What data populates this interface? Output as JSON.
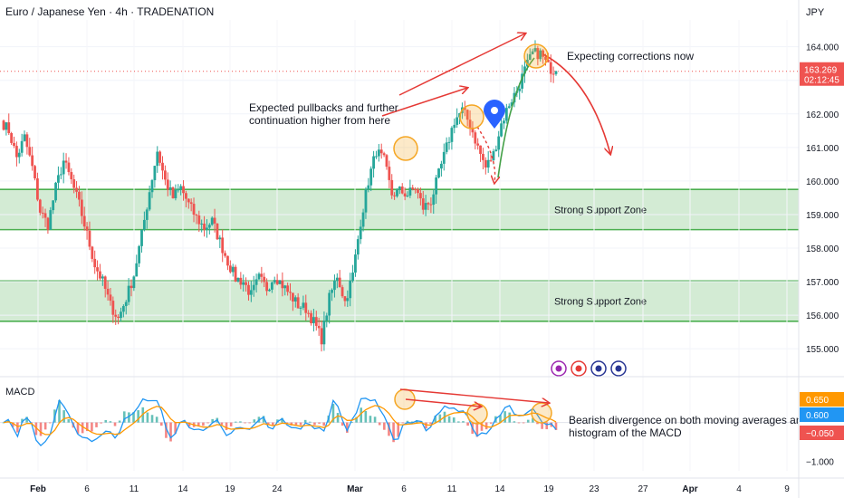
{
  "header": {
    "title": "Euro / Japanese Yen · 4h · TRADENATION",
    "currency": "JPY"
  },
  "indicator": {
    "name": "MACD"
  },
  "colors": {
    "up": "#26a69a",
    "down": "#ef5350",
    "zone_fill": "#c8e6c9",
    "zone_line": "#4caf50",
    "annotation_red": "#e53935",
    "annotation_green": "#43a047",
    "circle": "#f5a623",
    "macd_line": "#2196f3",
    "signal_line": "#ff9800",
    "marker_blue": "#2962ff"
  },
  "chart_data": [
    {
      "type": "candlestick",
      "title": "Euro / Japanese Yen · 4h · TRADENATION",
      "x_ticks": [
        "Feb",
        "6",
        "11",
        "14",
        "19",
        "24",
        "Mar",
        "6",
        "11",
        "14",
        "19",
        "23",
        "27",
        "Apr",
        "4",
        "9"
      ],
      "y_ticks": [
        155.0,
        156.0,
        157.0,
        158.0,
        159.0,
        160.0,
        161.0,
        162.0,
        163.0,
        164.0
      ],
      "ylim": [
        154.6,
        164.8
      ],
      "last_price": "163.269",
      "countdown": "02:12:45",
      "path": [
        161.8,
        161.5,
        160.7,
        161.3,
        160.4,
        159.1,
        158.7,
        159.8,
        160.6,
        160.0,
        159.3,
        158.4,
        157.5,
        157.0,
        156.3,
        155.9,
        156.5,
        157.2,
        158.4,
        159.7,
        160.9,
        160.0,
        159.5,
        159.8,
        159.3,
        158.9,
        158.6,
        158.8,
        158.2,
        157.6,
        157.1,
        157.0,
        156.6,
        157.1,
        156.8,
        157.2,
        156.9,
        156.6,
        156.3,
        156.2,
        155.8,
        155.3,
        156.5,
        157.2,
        156.4,
        157.2,
        158.8,
        160.0,
        160.9,
        160.6,
        159.6,
        159.7,
        159.6,
        159.8,
        159.2,
        159.4,
        160.2,
        161.0,
        161.8,
        162.1,
        161.7,
        161.0,
        160.4,
        160.8,
        161.7,
        162.3,
        162.7,
        163.3,
        163.8,
        163.8,
        163.4,
        163.27
      ],
      "support_zones": [
        {
          "label": "Strong Support Zone",
          "low": 158.55,
          "high": 159.75
        },
        {
          "label": "Strong Support Zone",
          "low": 155.82,
          "high": 157.02
        }
      ],
      "annotations": [
        {
          "text": "Expecting corrections now"
        },
        {
          "text": "Expected pullbacks and further continuation higher from here"
        }
      ]
    },
    {
      "type": "line",
      "title": "MACD",
      "y_ticks": [
        -1.0
      ],
      "ylim": [
        -1.25,
        0.95
      ],
      "labels": [
        {
          "text": "0.650",
          "value": 0.65,
          "color": "#ff9800"
        },
        {
          "text": "0.600",
          "value": 0.6,
          "color": "#2196f3"
        },
        {
          "text": "−0.050",
          "value": -0.05,
          "color": "#ef5350"
        }
      ],
      "annotation": "Bearish divergence on both moving averages and histogram of the MACD"
    }
  ]
}
